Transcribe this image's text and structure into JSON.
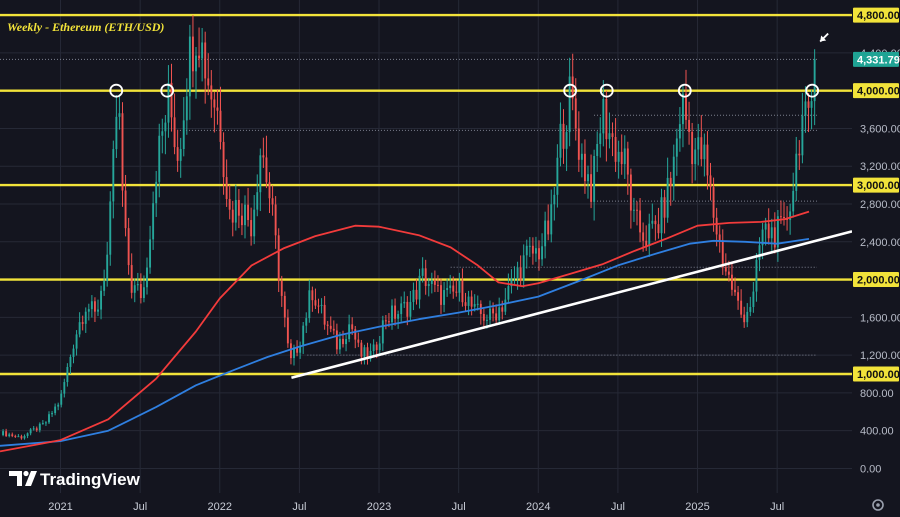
{
  "chart_data": {
    "type": "candlestick",
    "title": "Weekly - Ethereum (ETH/USD)",
    "y_ticks": [
      "0.00",
      "400.00",
      "800.00",
      "1,200.00",
      "1,600.00",
      "2,000.00",
      "2,400.00",
      "2,800.00",
      "3,200.00",
      "3,600.00",
      "4,000.00",
      "4,400.00",
      "4,800.00"
    ],
    "x_ticks": [
      {
        "t": 2021.0,
        "label": "2021"
      },
      {
        "t": 2021.5,
        "label": "Jul"
      },
      {
        "t": 2022.0,
        "label": "2022"
      },
      {
        "t": 2022.5,
        "label": "Jul"
      },
      {
        "t": 2023.0,
        "label": "2023"
      },
      {
        "t": 2023.5,
        "label": "Jul"
      },
      {
        "t": 2024.0,
        "label": "2024"
      },
      {
        "t": 2024.5,
        "label": "Jul"
      },
      {
        "t": 2025.0,
        "label": "2025"
      },
      {
        "t": 2025.5,
        "label": "Jul"
      }
    ],
    "ylim": [
      -260,
      4960
    ],
    "xlim": [
      2020.62,
      2025.97
    ],
    "grid": true,
    "last_price": "4,331.79",
    "horizontal_levels": [
      {
        "value": 4800,
        "label": "4,800.00"
      },
      {
        "value": 4000,
        "label": "4,000.00"
      },
      {
        "value": 3000,
        "label": "3,000.00"
      },
      {
        "value": 2000,
        "label": "2,000.00"
      },
      {
        "value": 1000,
        "label": "1,000.00"
      }
    ],
    "dotted_levels": [
      {
        "value": 4331.79,
        "t_start": 2020.62,
        "t_end": 2025.75
      },
      {
        "value": 3580,
        "t_start": 2021.75,
        "t_end": 2025.75
      },
      {
        "value": 3740,
        "t_start": 2024.35,
        "t_end": 2025.75
      },
      {
        "value": 2830,
        "t_start": 2024.35,
        "t_end": 2025.75
      },
      {
        "value": 2130,
        "t_start": 2023.45,
        "t_end": 2025.75
      },
      {
        "value": 1200,
        "t_start": 2022.55,
        "t_end": 2025.75
      }
    ],
    "trendline": {
      "points": [
        {
          "t": 2022.45,
          "v": 960
        },
        {
          "t": 2025.97,
          "v": 2510
        }
      ],
      "color": "#ffffff"
    },
    "price_path": [
      {
        "t": 2020.62,
        "v": 380
      },
      {
        "t": 2020.75,
        "v": 330
      },
      {
        "t": 2020.9,
        "v": 470
      },
      {
        "t": 2021.0,
        "v": 730
      },
      {
        "t": 2021.09,
        "v": 1400
      },
      {
        "t": 2021.16,
        "v": 1750
      },
      {
        "t": 2021.22,
        "v": 1600
      },
      {
        "t": 2021.3,
        "v": 2300
      },
      {
        "t": 2021.36,
        "v": 4000
      },
      {
        "t": 2021.4,
        "v": 2500
      },
      {
        "t": 2021.45,
        "v": 1900
      },
      {
        "t": 2021.52,
        "v": 1850
      },
      {
        "t": 2021.6,
        "v": 3200
      },
      {
        "t": 2021.68,
        "v": 3900
      },
      {
        "t": 2021.74,
        "v": 3300
      },
      {
        "t": 2021.8,
        "v": 4300
      },
      {
        "t": 2021.86,
        "v": 4700
      },
      {
        "t": 2021.93,
        "v": 4100
      },
      {
        "t": 2022.0,
        "v": 3700
      },
      {
        "t": 2022.06,
        "v": 2700
      },
      {
        "t": 2022.12,
        "v": 2800
      },
      {
        "t": 2022.2,
        "v": 2600
      },
      {
        "t": 2022.26,
        "v": 3450
      },
      {
        "t": 2022.32,
        "v": 2800
      },
      {
        "t": 2022.38,
        "v": 1950
      },
      {
        "t": 2022.44,
        "v": 1100
      },
      {
        "t": 2022.5,
        "v": 1350
      },
      {
        "t": 2022.58,
        "v": 1900
      },
      {
        "t": 2022.66,
        "v": 1550
      },
      {
        "t": 2022.74,
        "v": 1300
      },
      {
        "t": 2022.82,
        "v": 1550
      },
      {
        "t": 2022.88,
        "v": 1200
      },
      {
        "t": 2022.96,
        "v": 1200
      },
      {
        "t": 2023.04,
        "v": 1600
      },
      {
        "t": 2023.12,
        "v": 1650
      },
      {
        "t": 2023.2,
        "v": 1750
      },
      {
        "t": 2023.28,
        "v": 2050
      },
      {
        "t": 2023.36,
        "v": 1850
      },
      {
        "t": 2023.44,
        "v": 1820
      },
      {
        "t": 2023.52,
        "v": 1900
      },
      {
        "t": 2023.6,
        "v": 1650
      },
      {
        "t": 2023.7,
        "v": 1600
      },
      {
        "t": 2023.78,
        "v": 1750
      },
      {
        "t": 2023.86,
        "v": 2050
      },
      {
        "t": 2023.93,
        "v": 2250
      },
      {
        "t": 2024.0,
        "v": 2300
      },
      {
        "t": 2024.08,
        "v": 2600
      },
      {
        "t": 2024.14,
        "v": 3500
      },
      {
        "t": 2024.2,
        "v": 3950
      },
      {
        "t": 2024.27,
        "v": 3300
      },
      {
        "t": 2024.34,
        "v": 2950
      },
      {
        "t": 2024.4,
        "v": 3800
      },
      {
        "t": 2024.47,
        "v": 3450
      },
      {
        "t": 2024.55,
        "v": 3200
      },
      {
        "t": 2024.6,
        "v": 2600
      },
      {
        "t": 2024.68,
        "v": 2450
      },
      {
        "t": 2024.76,
        "v": 2600
      },
      {
        "t": 2024.84,
        "v": 3100
      },
      {
        "t": 2024.9,
        "v": 3900
      },
      {
        "t": 2024.97,
        "v": 3400
      },
      {
        "t": 2025.04,
        "v": 3300
      },
      {
        "t": 2025.1,
        "v": 2700
      },
      {
        "t": 2025.16,
        "v": 2200
      },
      {
        "t": 2025.22,
        "v": 1900
      },
      {
        "t": 2025.28,
        "v": 1600
      },
      {
        "t": 2025.35,
        "v": 1800
      },
      {
        "t": 2025.4,
        "v": 2500
      },
      {
        "t": 2025.47,
        "v": 2500
      },
      {
        "t": 2025.54,
        "v": 2500
      },
      {
        "t": 2025.6,
        "v": 3000
      },
      {
        "t": 2025.65,
        "v": 3700
      },
      {
        "t": 2025.7,
        "v": 3600
      },
      {
        "t": 2025.74,
        "v": 4331.79
      }
    ],
    "ma_red": [
      {
        "t": 2020.62,
        "v": 180
      },
      {
        "t": 2021.0,
        "v": 300
      },
      {
        "t": 2021.3,
        "v": 520
      },
      {
        "t": 2021.6,
        "v": 950
      },
      {
        "t": 2021.85,
        "v": 1450
      },
      {
        "t": 2022.0,
        "v": 1800
      },
      {
        "t": 2022.2,
        "v": 2150
      },
      {
        "t": 2022.4,
        "v": 2330
      },
      {
        "t": 2022.6,
        "v": 2460
      },
      {
        "t": 2022.85,
        "v": 2570
      },
      {
        "t": 2023.0,
        "v": 2560
      },
      {
        "t": 2023.25,
        "v": 2470
      },
      {
        "t": 2023.45,
        "v": 2340
      },
      {
        "t": 2023.62,
        "v": 2150
      },
      {
        "t": 2023.75,
        "v": 1970
      },
      {
        "t": 2023.9,
        "v": 1930
      },
      {
        "t": 2024.0,
        "v": 1960
      },
      {
        "t": 2024.2,
        "v": 2060
      },
      {
        "t": 2024.4,
        "v": 2160
      },
      {
        "t": 2024.6,
        "v": 2300
      },
      {
        "t": 2024.8,
        "v": 2430
      },
      {
        "t": 2025.0,
        "v": 2570
      },
      {
        "t": 2025.2,
        "v": 2600
      },
      {
        "t": 2025.4,
        "v": 2610
      },
      {
        "t": 2025.55,
        "v": 2640
      },
      {
        "t": 2025.7,
        "v": 2720
      }
    ],
    "ma_blue": [
      {
        "t": 2020.62,
        "v": 240
      },
      {
        "t": 2021.0,
        "v": 290
      },
      {
        "t": 2021.3,
        "v": 400
      },
      {
        "t": 2021.6,
        "v": 650
      },
      {
        "t": 2021.85,
        "v": 880
      },
      {
        "t": 2022.1,
        "v": 1050
      },
      {
        "t": 2022.3,
        "v": 1180
      },
      {
        "t": 2022.5,
        "v": 1290
      },
      {
        "t": 2022.75,
        "v": 1410
      },
      {
        "t": 2023.0,
        "v": 1500
      },
      {
        "t": 2023.25,
        "v": 1580
      },
      {
        "t": 2023.5,
        "v": 1650
      },
      {
        "t": 2023.75,
        "v": 1730
      },
      {
        "t": 2024.0,
        "v": 1820
      },
      {
        "t": 2024.25,
        "v": 1980
      },
      {
        "t": 2024.5,
        "v": 2150
      },
      {
        "t": 2024.75,
        "v": 2280
      },
      {
        "t": 2024.95,
        "v": 2380
      },
      {
        "t": 2025.1,
        "v": 2410
      },
      {
        "t": 2025.3,
        "v": 2400
      },
      {
        "t": 2025.5,
        "v": 2380
      },
      {
        "t": 2025.7,
        "v": 2430
      }
    ],
    "circle_markers": [
      {
        "t": 2021.35,
        "v": 4000
      },
      {
        "t": 2021.67,
        "v": 4000
      },
      {
        "t": 2024.2,
        "v": 4000
      },
      {
        "t": 2024.43,
        "v": 4000
      },
      {
        "t": 2024.92,
        "v": 4000
      },
      {
        "t": 2025.72,
        "v": 4000
      }
    ],
    "arrow_annotation": {
      "t": 2025.77,
      "v": 4520
    },
    "colors": {
      "background": "#14151f",
      "up": "#26a69a",
      "down": "#ef5350",
      "level_line": "#f2e33a",
      "ma_red": "#f23b3b",
      "ma_blue": "#2f7fe0",
      "price_badge": "#1fa394",
      "grid": "#262936"
    }
  },
  "branding": {
    "text": "TradingView",
    "icon": "tradingview-logo-icon"
  },
  "axis_controls": {
    "icon": "settings-gear-icon"
  }
}
